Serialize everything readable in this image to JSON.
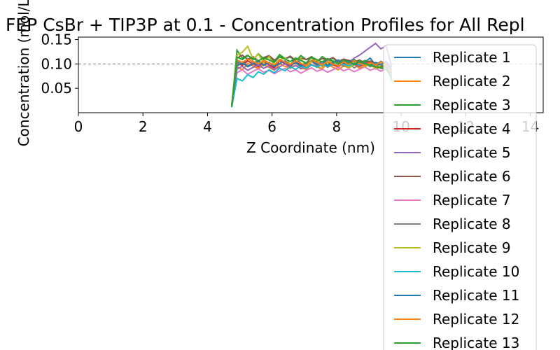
{
  "chart_data": {
    "type": "line",
    "title": "FEP CsBr + TIP3P at 0.1 - Concentration Profiles for All Repl",
    "xlabel": "Z Coordinate (nm)",
    "ylabel": "Concentration (mol/L)",
    "xlim": [
      0,
      14.4
    ],
    "ylim": [
      0.0,
      0.155
    ],
    "xticks": [
      0,
      2,
      4,
      6,
      8,
      10,
      12,
      14
    ],
    "xtick_labels": [
      "0",
      "2",
      "4",
      "6",
      "8",
      "10",
      "12",
      "14"
    ],
    "yticks": [
      0.05,
      0.1,
      0.15
    ],
    "ytick_labels": [
      "0.05",
      "0.10",
      "0.15"
    ],
    "reference_line": {
      "y": 0.1,
      "style": "dashed",
      "color": "#808080"
    },
    "grid": false,
    "legend_position": "right, overflowing bottom edge",
    "x_range_of_data": [
      4.75,
      9.7
    ],
    "series": [
      {
        "name": "Replicate 1",
        "color": "#1f77b4",
        "values": [
          0.012,
          0.105,
          0.099,
          0.111,
          0.104,
          0.097,
          0.108,
          0.102,
          0.095,
          0.109,
          0.103,
          0.098,
          0.112,
          0.101,
          0.096,
          0.107,
          0.104,
          0.099,
          0.11,
          0.103,
          0.097,
          0.106,
          0.101,
          0.108,
          0.099,
          0.104,
          0.112,
          0.098,
          0.105,
          0.1,
          0.093
        ]
      },
      {
        "name": "Replicate 2",
        "color": "#ff7f0e",
        "values": [
          0.015,
          0.094,
          0.088,
          0.101,
          0.096,
          0.09,
          0.099,
          0.093,
          0.087,
          0.1,
          0.095,
          0.091,
          0.097,
          0.092,
          0.089,
          0.098,
          0.094,
          0.09,
          0.102,
          0.093,
          0.088,
          0.096,
          0.092,
          0.099,
          0.091,
          0.095,
          0.1,
          0.09,
          0.094,
          0.098,
          0.082
        ]
      },
      {
        "name": "Replicate 3",
        "color": "#2ca02c",
        "values": [
          0.013,
          0.128,
          0.112,
          0.118,
          0.108,
          0.121,
          0.11,
          0.116,
          0.105,
          0.119,
          0.111,
          0.114,
          0.106,
          0.117,
          0.109,
          0.113,
          0.104,
          0.115,
          0.108,
          0.112,
          0.103,
          0.11,
          0.106,
          0.109,
          0.101,
          0.107,
          0.104,
          0.098,
          0.096,
          0.093,
          0.07
        ]
      },
      {
        "name": "Replicate 4",
        "color": "#d62728",
        "values": [
          0.014,
          0.101,
          0.097,
          0.106,
          0.1,
          0.094,
          0.104,
          0.098,
          0.092,
          0.107,
          0.1,
          0.095,
          0.103,
          0.099,
          0.093,
          0.105,
          0.1,
          0.096,
          0.104,
          0.098,
          0.094,
          0.102,
          0.097,
          0.101,
          0.095,
          0.099,
          0.103,
          0.094,
          0.092,
          0.088,
          0.075
        ]
      },
      {
        "name": "Replicate 5",
        "color": "#9467bd",
        "values": [
          0.012,
          0.09,
          0.095,
          0.087,
          0.093,
          0.098,
          0.091,
          0.096,
          0.088,
          0.094,
          0.1,
          0.092,
          0.097,
          0.09,
          0.095,
          0.099,
          0.093,
          0.101,
          0.096,
          0.104,
          0.099,
          0.107,
          0.103,
          0.112,
          0.118,
          0.126,
          0.134,
          0.142,
          0.131,
          0.137,
          0.095
        ]
      },
      {
        "name": "Replicate 6",
        "color": "#8c564b",
        "values": [
          0.015,
          0.112,
          0.118,
          0.109,
          0.115,
          0.106,
          0.113,
          0.117,
          0.108,
          0.114,
          0.11,
          0.116,
          0.107,
          0.112,
          0.109,
          0.115,
          0.106,
          0.111,
          0.108,
          0.113,
          0.105,
          0.11,
          0.107,
          0.104,
          0.108,
          0.102,
          0.106,
          0.1,
          0.097,
          0.094,
          0.08
        ]
      },
      {
        "name": "Replicate 7",
        "color": "#e377c2",
        "values": [
          0.013,
          0.082,
          0.088,
          0.079,
          0.085,
          0.09,
          0.083,
          0.087,
          0.08,
          0.086,
          0.091,
          0.084,
          0.088,
          0.081,
          0.087,
          0.092,
          0.085,
          0.089,
          0.083,
          0.088,
          0.093,
          0.086,
          0.09,
          0.084,
          0.089,
          0.094,
          0.087,
          0.091,
          0.085,
          0.09,
          0.078
        ]
      },
      {
        "name": "Replicate 8",
        "color": "#7f7f7f",
        "values": [
          0.014,
          0.099,
          0.104,
          0.096,
          0.102,
          0.107,
          0.098,
          0.103,
          0.095,
          0.101,
          0.106,
          0.097,
          0.102,
          0.094,
          0.1,
          0.105,
          0.096,
          0.101,
          0.093,
          0.099,
          0.104,
          0.095,
          0.1,
          0.092,
          0.098,
          0.103,
          0.094,
          0.099,
          0.091,
          0.097,
          0.083
        ]
      },
      {
        "name": "Replicate 9",
        "color": "#bcbd22",
        "values": [
          0.012,
          0.118,
          0.124,
          0.136,
          0.11,
          0.12,
          0.102,
          0.115,
          0.097,
          0.108,
          0.113,
          0.099,
          0.106,
          0.111,
          0.095,
          0.104,
          0.109,
          0.093,
          0.102,
          0.107,
          0.096,
          0.101,
          0.092,
          0.099,
          0.105,
          0.094,
          0.1,
          0.091,
          0.098,
          0.102,
          0.085
        ]
      },
      {
        "name": "Replicate 10",
        "color": "#17becf",
        "values": [
          0.011,
          0.07,
          0.065,
          0.078,
          0.072,
          0.084,
          0.079,
          0.088,
          0.082,
          0.091,
          0.086,
          0.094,
          0.089,
          0.096,
          0.091,
          0.098,
          0.093,
          0.099,
          0.095,
          0.101,
          0.097,
          0.1,
          0.096,
          0.102,
          0.098,
          0.1,
          0.097,
          0.101,
          0.099,
          0.103,
          0.065
        ]
      },
      {
        "name": "Replicate 11",
        "color": "#1f77b4",
        "values": [
          0.013,
          0.096,
          0.102,
          0.094,
          0.1,
          0.105,
          0.097,
          0.103,
          0.095,
          0.101,
          0.106,
          0.098,
          0.104,
          0.096,
          0.102,
          0.107,
          0.099,
          0.105,
          0.097,
          0.103,
          0.108,
          0.1,
          0.106,
          0.098,
          0.104,
          0.101,
          0.097,
          0.103,
          0.099,
          0.105,
          0.088
        ]
      },
      {
        "name": "Replicate 12",
        "color": "#ff7f0e",
        "values": [
          0.014,
          0.108,
          0.103,
          0.11,
          0.105,
          0.1,
          0.107,
          0.102,
          0.098,
          0.109,
          0.104,
          0.099,
          0.106,
          0.101,
          0.097,
          0.108,
          0.103,
          0.098,
          0.105,
          0.1,
          0.096,
          0.104,
          0.099,
          0.106,
          0.101,
          0.097,
          0.103,
          0.098,
          0.104,
          0.1,
          0.085
        ]
      },
      {
        "name": "Replicate 13",
        "color": "#2ca02c",
        "values": [
          0.012,
          0.114,
          0.109,
          0.117,
          0.111,
          0.106,
          0.113,
          0.108,
          0.103,
          0.115,
          0.11,
          0.105,
          0.112,
          0.107,
          0.102,
          0.114,
          0.109,
          0.104,
          0.111,
          0.106,
          0.101,
          0.108,
          0.104,
          0.099,
          0.106,
          0.101,
          0.097,
          0.094,
          0.092,
          0.089,
          0.072
        ]
      }
    ]
  }
}
